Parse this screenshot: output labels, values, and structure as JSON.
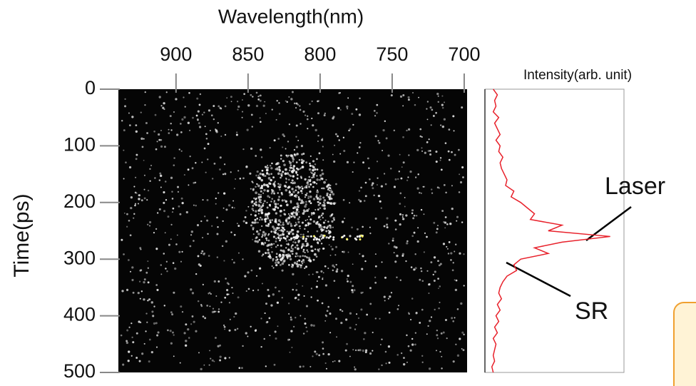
{
  "chart_data": [
    {
      "type": "image",
      "title": "Wavelength(nm)",
      "ylabel": "Time(ps)",
      "xlim": [
        940,
        698
      ],
      "xticks": [
        900,
        850,
        800,
        750,
        700
      ],
      "ylim": [
        0,
        500
      ],
      "yticks": [
        0,
        100,
        200,
        300,
        400,
        500
      ]
    },
    {
      "type": "line",
      "title": "Intensity(arb. unit)",
      "color": "#e8202a",
      "xlim": [
        0,
        1
      ],
      "ylim": [
        0,
        500
      ],
      "x": [
        0,
        10,
        20,
        30,
        40,
        50,
        60,
        70,
        80,
        90,
        100,
        110,
        120,
        130,
        140,
        150,
        160,
        170,
        180,
        190,
        200,
        210,
        220,
        230,
        240,
        250,
        260,
        270,
        280,
        290,
        300,
        310,
        320,
        330,
        340,
        350,
        360,
        370,
        380,
        390,
        400,
        410,
        420,
        430,
        440,
        450,
        460,
        470,
        480,
        490,
        500
      ],
      "values": [
        0.05,
        0.08,
        0.06,
        0.07,
        0.05,
        0.09,
        0.06,
        0.08,
        0.1,
        0.07,
        0.1,
        0.09,
        0.12,
        0.1,
        0.11,
        0.13,
        0.15,
        0.14,
        0.2,
        0.18,
        0.25,
        0.3,
        0.35,
        0.32,
        0.55,
        0.45,
        0.9,
        0.55,
        0.35,
        0.45,
        0.25,
        0.2,
        0.22,
        0.15,
        0.12,
        0.1,
        0.09,
        0.11,
        0.08,
        0.1,
        0.07,
        0.09,
        0.06,
        0.08,
        0.05,
        0.07,
        0.06,
        0.05,
        0.06,
        0.04,
        0.05
      ],
      "annotations": [
        "Laser",
        "SR"
      ]
    }
  ]
}
